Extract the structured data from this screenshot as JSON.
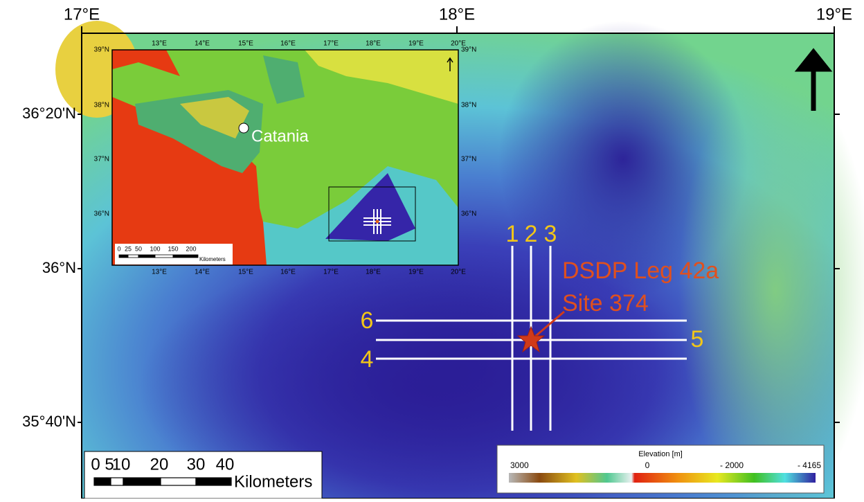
{
  "map": {
    "lon_labels": [
      "17°E",
      "18°E",
      "19°E"
    ],
    "lat_labels": [
      "36°20'N",
      "36°N",
      "35°40'N"
    ],
    "inset": {
      "lon_labels_top": [
        "13°E",
        "14°E",
        "15°E",
        "16°E",
        "17°E",
        "18°E",
        "19°E",
        "20°E"
      ],
      "lon_labels_bottom": [
        "13°E",
        "14°E",
        "15°E",
        "16°E",
        "17°E",
        "18°E",
        "19°E",
        "20°E"
      ],
      "lat_labels_left": [
        "39°N",
        "38°N",
        "37°N",
        "36°N"
      ],
      "lat_labels_right": [
        "39°N",
        "38°N",
        "37°N",
        "36°N"
      ],
      "city": "Catania",
      "scale_labels": [
        "0",
        "25",
        "50",
        "100",
        "150",
        "200"
      ],
      "scale_unit": "Kilometers"
    },
    "profiles": [
      "1",
      "2",
      "3",
      "4",
      "5",
      "6"
    ],
    "site": [
      "DSDP Leg 42a",
      "Site 374"
    ],
    "scale_labels": [
      "0",
      "5",
      "10",
      "20",
      "30",
      "40"
    ],
    "scale_unit": "Kilometers",
    "legend": {
      "title": "Elevation [m]",
      "labels": [
        "3000",
        "0",
        "- 2000",
        "- 4165"
      ]
    }
  }
}
